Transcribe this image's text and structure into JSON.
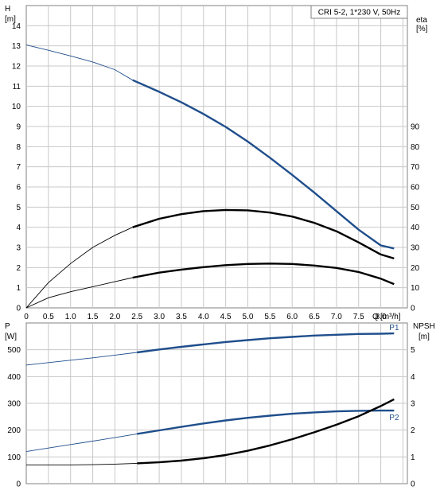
{
  "chart_data": [
    {
      "type": "line",
      "title": "CRI 5-2, 1*230 V, 50Hz",
      "xlabel": "Q [m³/h]",
      "x_axis": {
        "label": "Q",
        "unit": "[m³/h]",
        "range": [
          0,
          8.6
        ],
        "ticks": [
          "0",
          "0.5",
          "1.0",
          "1.5",
          "2.0",
          "2.5",
          "3.0",
          "3.5",
          "4.0",
          "4.5",
          "5.0",
          "5.5",
          "6.0",
          "6.5",
          "7.0",
          "7.5",
          "8.0"
        ]
      },
      "y_axis_left": {
        "label": "H",
        "unit": "[m]",
        "range": [
          0,
          15
        ],
        "ticks": [
          "0",
          "1",
          "2",
          "3",
          "4",
          "5",
          "6",
          "7",
          "8",
          "9",
          "10",
          "11",
          "12",
          "13",
          "14"
        ]
      },
      "y_axis_right": {
        "label": "eta",
        "unit": "[%]",
        "range": [
          0,
          150
        ],
        "ticks": [
          "0",
          "10",
          "20",
          "30",
          "40",
          "50",
          "60",
          "70",
          "80",
          "90"
        ]
      },
      "grid": true,
      "series": [
        {
          "axis": "left",
          "points": [
            [
              0,
              13.05
            ],
            [
              0.5,
              12.78
            ],
            [
              1.0,
              12.5
            ],
            [
              1.5,
              12.2
            ],
            [
              2.0,
              11.82
            ],
            [
              2.4,
              11.3
            ],
            [
              3.0,
              10.72
            ],
            [
              3.5,
              10.2
            ],
            [
              4.0,
              9.62
            ],
            [
              4.5,
              8.98
            ],
            [
              5.0,
              8.25
            ],
            [
              5.5,
              7.45
            ],
            [
              6.0,
              6.6
            ],
            [
              6.5,
              5.72
            ],
            [
              7.0,
              4.8
            ],
            [
              7.5,
              3.88
            ],
            [
              8.0,
              3.1
            ],
            [
              8.3,
              2.95
            ]
          ]
        },
        {
          "axis": "right",
          "points": [
            [
              0,
              0
            ],
            [
              0.5,
              12.5
            ],
            [
              1.0,
              22
            ],
            [
              1.5,
              30
            ],
            [
              2.0,
              36
            ],
            [
              2.4,
              40
            ],
            [
              3.0,
              44.2
            ],
            [
              3.5,
              46.5
            ],
            [
              4.0,
              48
            ],
            [
              4.5,
              48.6
            ],
            [
              5.0,
              48.4
            ],
            [
              5.5,
              47.3
            ],
            [
              6.0,
              45.3
            ],
            [
              6.5,
              42.2
            ],
            [
              7.0,
              38
            ],
            [
              7.5,
              32.5
            ],
            [
              8.0,
              26.5
            ],
            [
              8.3,
              24.5
            ]
          ]
        },
        {
          "axis": "right",
          "points": [
            [
              0,
              0
            ],
            [
              0.5,
              5
            ],
            [
              1.0,
              8
            ],
            [
              1.5,
              10.5
            ],
            [
              2.0,
              13
            ],
            [
              2.4,
              15
            ],
            [
              3.0,
              17.5
            ],
            [
              3.5,
              19
            ],
            [
              4.0,
              20.2
            ],
            [
              4.5,
              21.2
            ],
            [
              5.0,
              21.8
            ],
            [
              5.5,
              22
            ],
            [
              6.0,
              21.8
            ],
            [
              6.5,
              21
            ],
            [
              7.0,
              19.8
            ],
            [
              7.5,
              17.8
            ],
            [
              8.0,
              14.5
            ],
            [
              8.3,
              11.8
            ]
          ]
        }
      ]
    },
    {
      "type": "line",
      "xlabel": "",
      "x_axis": {
        "range": [
          0,
          8.6
        ]
      },
      "y_axis_left": {
        "label": "P",
        "unit": "[W]",
        "range": [
          0,
          600
        ],
        "ticks": [
          "0",
          "100",
          "200",
          "300",
          "400",
          "500"
        ]
      },
      "y_axis_right": {
        "label": "NPSH",
        "unit": "[m]",
        "range": [
          0,
          6
        ],
        "ticks": [
          "0",
          "1",
          "2",
          "3",
          "4",
          "5"
        ]
      },
      "grid": true,
      "series": [
        {
          "name": "P1",
          "axis": "left",
          "points": [
            [
              0,
              443
            ],
            [
              0.5,
              452
            ],
            [
              1.0,
              461
            ],
            [
              1.5,
              470
            ],
            [
              2.0,
              480
            ],
            [
              2.5,
              490
            ],
            [
              3.0,
              501
            ],
            [
              3.5,
              511
            ],
            [
              4.0,
              520
            ],
            [
              4.5,
              529
            ],
            [
              5.0,
              536
            ],
            [
              5.5,
              543
            ],
            [
              6.0,
              548
            ],
            [
              6.5,
              553
            ],
            [
              7.0,
              556
            ],
            [
              7.5,
              559
            ],
            [
              8.0,
              560
            ],
            [
              8.3,
              561
            ]
          ]
        },
        {
          "name": "P2",
          "axis": "left",
          "points": [
            [
              0,
              120
            ],
            [
              0.5,
              133
            ],
            [
              1.0,
              146
            ],
            [
              1.5,
              159
            ],
            [
              2.0,
              172
            ],
            [
              2.5,
              186
            ],
            [
              3.0,
              199
            ],
            [
              3.5,
              212
            ],
            [
              4.0,
              225
            ],
            [
              4.5,
              236
            ],
            [
              5.0,
              246
            ],
            [
              5.5,
              254
            ],
            [
              6.0,
              261
            ],
            [
              6.5,
              266
            ],
            [
              7.0,
              270
            ],
            [
              7.5,
              272
            ],
            [
              8.0,
              273
            ],
            [
              8.3,
              273
            ]
          ]
        },
        {
          "axis": "right",
          "points": [
            [
              0,
              0.7
            ],
            [
              0.5,
              0.7
            ],
            [
              1.0,
              0.7
            ],
            [
              1.5,
              0.71
            ],
            [
              2.0,
              0.73
            ],
            [
              2.5,
              0.76
            ],
            [
              3.0,
              0.8
            ],
            [
              3.5,
              0.86
            ],
            [
              4.0,
              0.95
            ],
            [
              4.5,
              1.07
            ],
            [
              5.0,
              1.23
            ],
            [
              5.5,
              1.43
            ],
            [
              6.0,
              1.66
            ],
            [
              6.5,
              1.92
            ],
            [
              7.0,
              2.2
            ],
            [
              7.5,
              2.52
            ],
            [
              8.0,
              2.9
            ],
            [
              8.3,
              3.15
            ]
          ]
        }
      ]
    }
  ]
}
